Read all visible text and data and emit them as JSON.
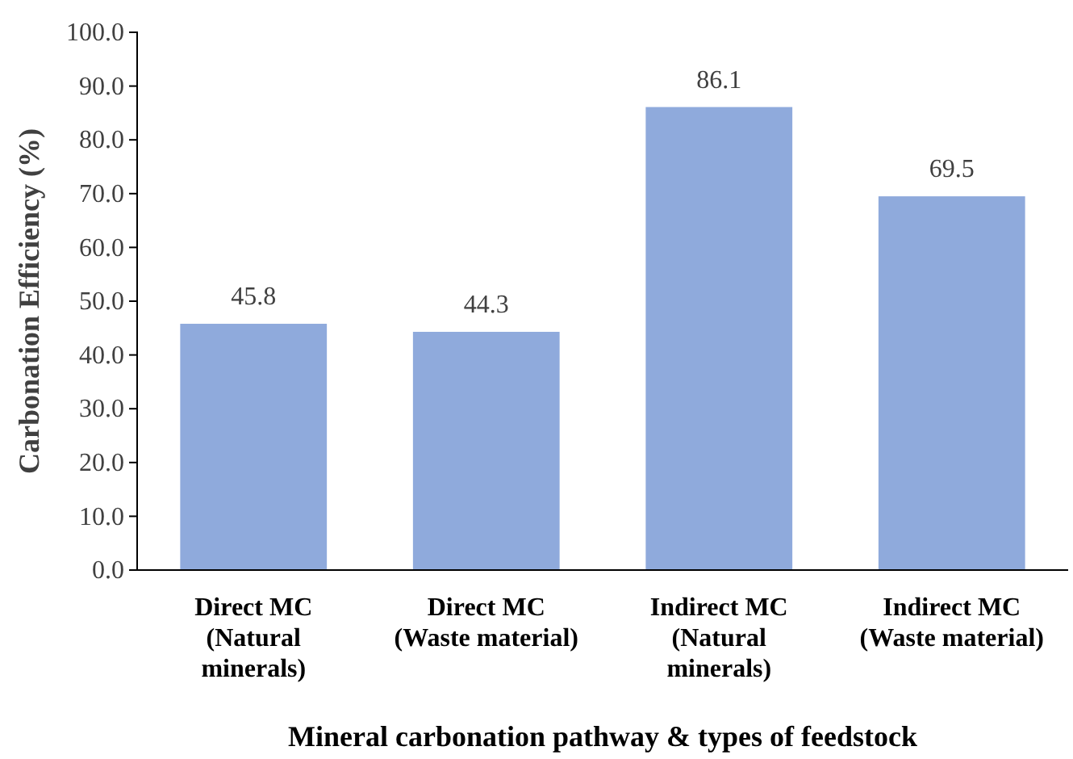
{
  "chart_data": {
    "type": "bar",
    "xlabel": "Mineral carbonation pathway & types of feedstock",
    "ylabel": "Carbonation Efficiency (%)",
    "categories": [
      "Direct MC\n(Natural\nminerals)",
      "Direct MC\n(Waste material)",
      "Indirect MC\n(Natural\nminerals)",
      "Indirect MC\n(Waste material)"
    ],
    "values": [
      45.8,
      44.3,
      86.1,
      69.5
    ],
    "color": "#8faadc",
    "data_labels": true,
    "grid": false,
    "ylim": [
      0,
      100
    ],
    "yticks": [
      {
        "value": 0,
        "label": "0.0"
      },
      {
        "value": 10,
        "label": "10.0"
      },
      {
        "value": 20,
        "label": "20.0"
      },
      {
        "value": 30,
        "label": "30.0"
      },
      {
        "value": 40,
        "label": "40.0"
      },
      {
        "value": 50,
        "label": "50.0"
      },
      {
        "value": 60,
        "label": "60.0"
      },
      {
        "value": 70,
        "label": "70.0"
      },
      {
        "value": 80,
        "label": "80.0"
      },
      {
        "value": 90,
        "label": "90.0"
      },
      {
        "value": 100,
        "label": "100.0"
      }
    ]
  }
}
